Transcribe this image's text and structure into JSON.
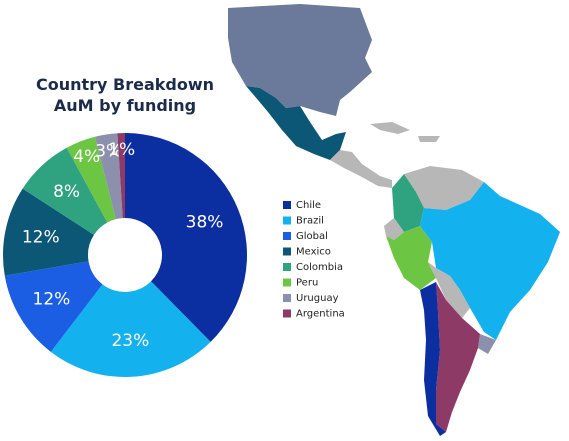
{
  "chart_data": {
    "type": "donut",
    "title": "Country Breakdown AuM by funding",
    "categories": [
      "Chile",
      "Brazil",
      "Global",
      "Mexico",
      "Colombia",
      "Peru",
      "Uruguay",
      "Argentina"
    ],
    "values": [
      38,
      23,
      12,
      12,
      8,
      4,
      3,
      1
    ],
    "value_labels": [
      "38%",
      "23%",
      "12%",
      "12%",
      "8%",
      "4%",
      "3%",
      "1%"
    ],
    "colors": [
      "#0b2ea0",
      "#14b1ef",
      "#1b5ee3",
      "#0c5676",
      "#2fa37f",
      "#6cc644",
      "#8c90ad",
      "#8e3a66"
    ],
    "legend": "right"
  }
}
